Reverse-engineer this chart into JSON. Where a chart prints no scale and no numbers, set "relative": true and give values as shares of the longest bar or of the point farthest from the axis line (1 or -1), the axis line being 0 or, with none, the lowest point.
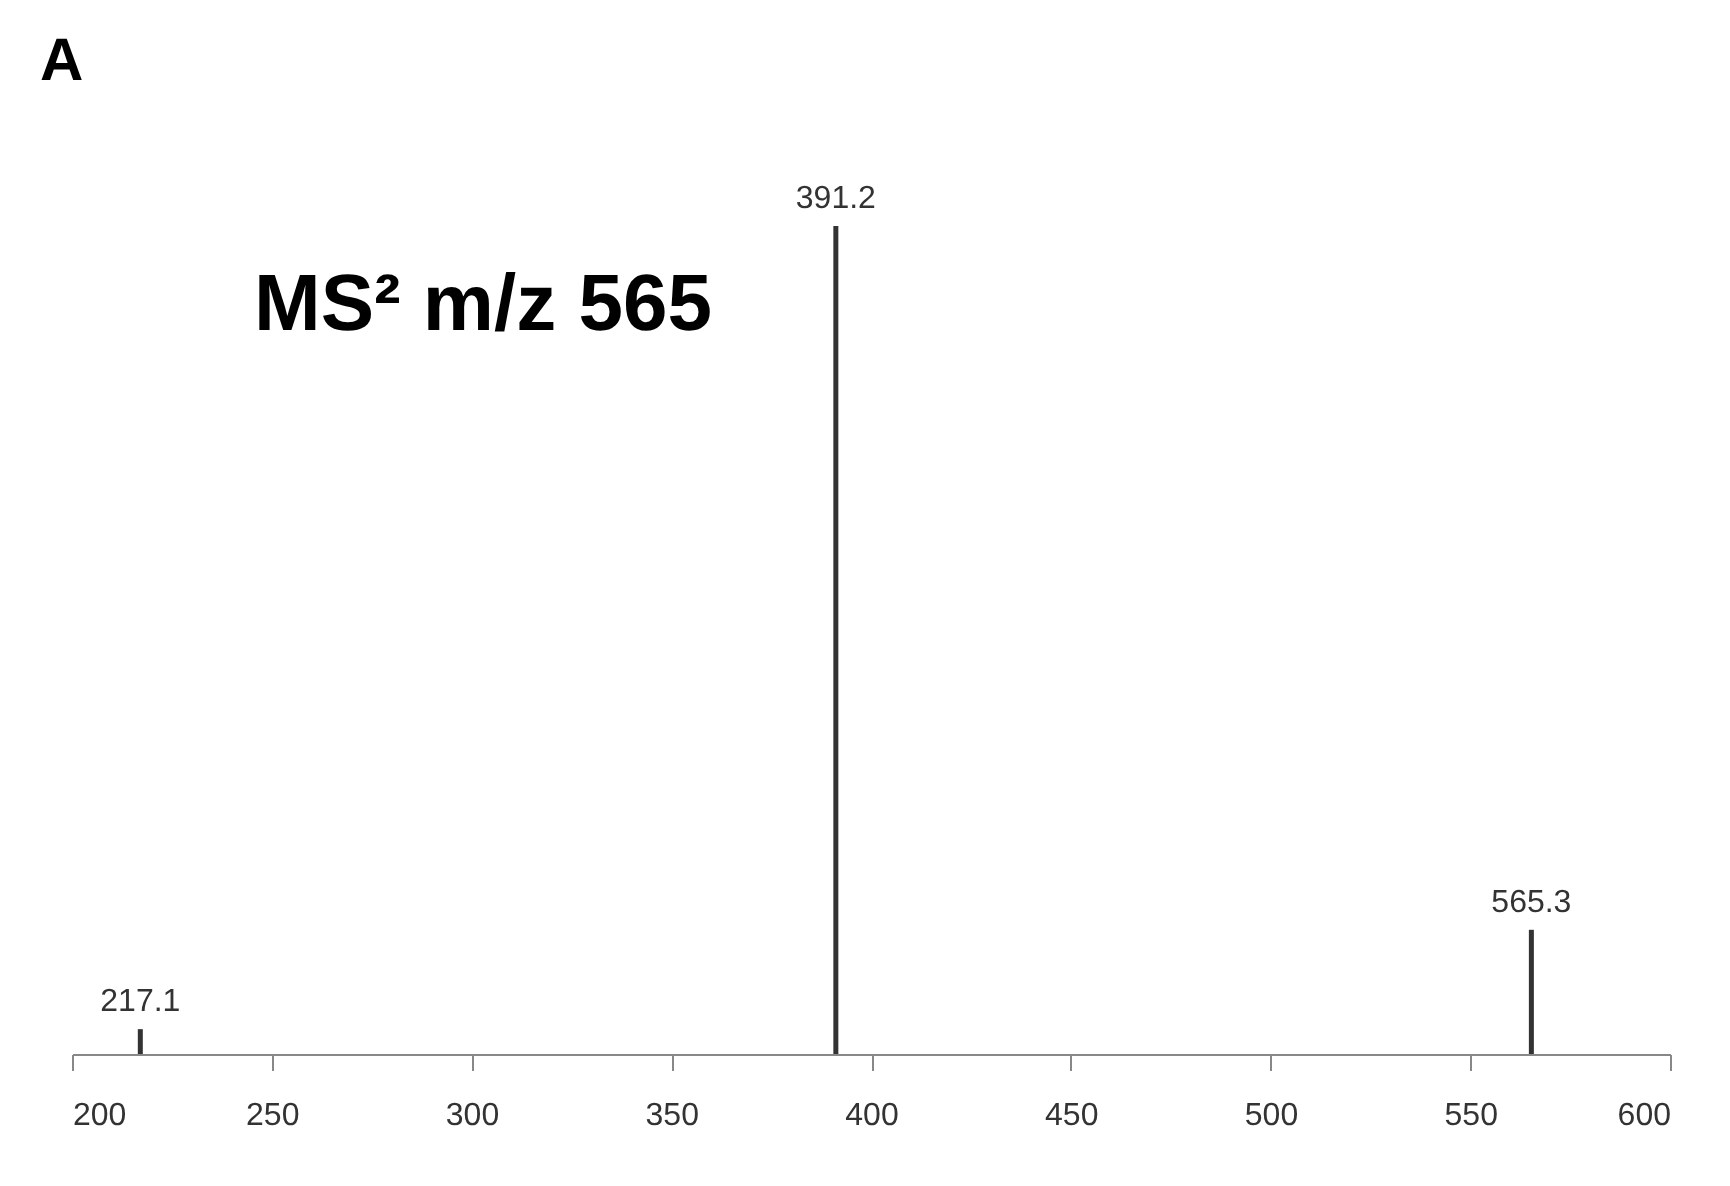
{
  "chart_data": {
    "type": "bar",
    "title": "A",
    "annotations": [
      "MS² m/z 565",
      {
        "text": "217.1",
        "x": 217.1,
        "y": 0.03
      },
      {
        "text": "391.2",
        "x": 391.2,
        "y": 1
      },
      {
        "text": "565.3",
        "x": 565.3,
        "y": 0.15
      }
    ],
    "x": [
      217.1,
      391.2,
      565.3
    ],
    "values": [
      0.03,
      1,
      0.15
    ],
    "color": "#333333",
    "relative": true,
    "xlim": [
      200,
      600
    ],
    "xticks": [
      200,
      250,
      300,
      350,
      400,
      450,
      500,
      550,
      600
    ],
    "grid": false
  }
}
